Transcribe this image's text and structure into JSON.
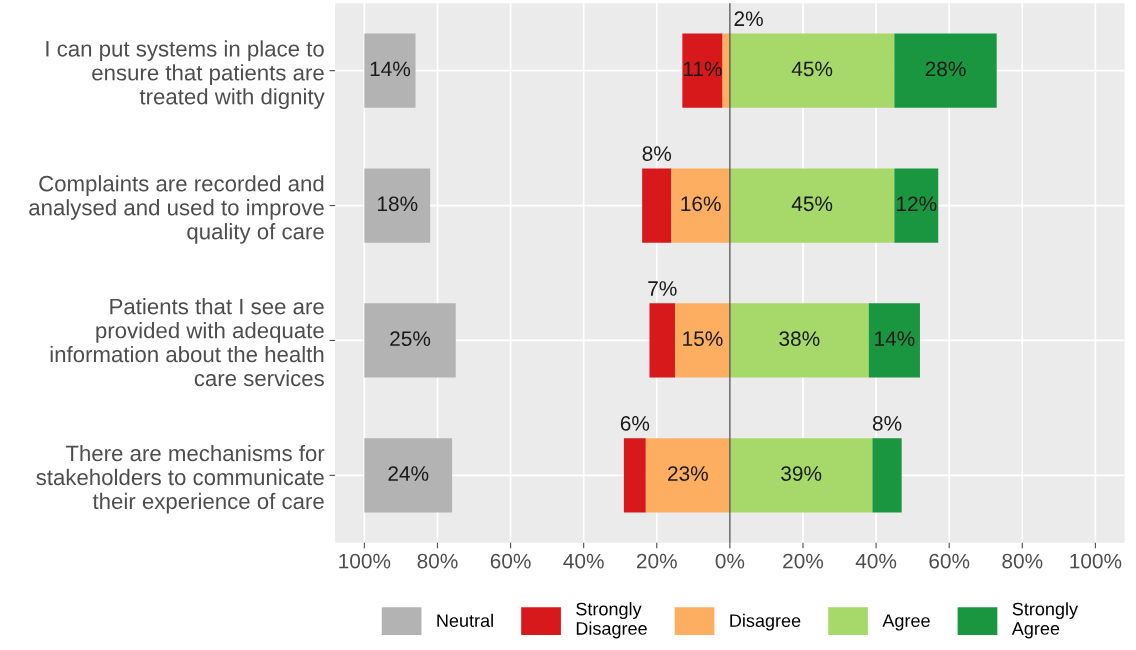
{
  "chart_data": {
    "type": "bar",
    "orientation": "horizontal",
    "categories": [
      "I can put systems in place to\nensure that patients are\ntreated with dignity",
      "Complaints are recorded and\nanalysed and used to improve\nquality of care",
      "Patients that I see are\nprovided with adequate\ninformation about the health\ncare services",
      "There are mechanisms for\nstakeholders to communicate\ntheir experience of care"
    ],
    "series": [
      {
        "name": "Neutral",
        "color": "#b3b3b3",
        "base": [
          -100,
          -100,
          -100,
          -100
        ],
        "values": [
          14,
          18,
          25,
          24
        ],
        "value_labels": [
          "14%",
          "18%",
          "25%",
          "24%"
        ]
      },
      {
        "name": "Strongly\nDisagree",
        "color": "#d7191c",
        "base": [
          -2,
          -16,
          -15,
          -23
        ],
        "values": [
          -11,
          -8,
          -7,
          -6
        ],
        "value_labels": [
          "11%",
          "8%",
          "7%",
          "6%"
        ]
      },
      {
        "name": "Disagree",
        "color": "#fdae61",
        "base": [
          0,
          0,
          0,
          0
        ],
        "values": [
          -2,
          -16,
          -15,
          -23
        ],
        "value_labels": [
          "2%",
          "16%",
          "15%",
          "23%"
        ]
      },
      {
        "name": "Agree",
        "color": "#a6d96a",
        "base": [
          0,
          0,
          0,
          0
        ],
        "values": [
          45,
          45,
          38,
          39
        ],
        "value_labels": [
          "45%",
          "45%",
          "38%",
          "39%"
        ]
      },
      {
        "name": "Strongly\nAgree",
        "color": "#1a9641",
        "base": [
          45,
          45,
          38,
          39
        ],
        "values": [
          28,
          12,
          14,
          8
        ],
        "value_labels": [
          "28%",
          "12%",
          "14%",
          "8%"
        ]
      }
    ],
    "xlim": [
      -108,
      108
    ],
    "xticks": [
      {
        "value": -100,
        "label": "100%"
      },
      {
        "value": -80,
        "label": "80%"
      },
      {
        "value": -60,
        "label": "60%"
      },
      {
        "value": -40,
        "label": "40%"
      },
      {
        "value": -20,
        "label": "20%"
      },
      {
        "value": 0,
        "label": "0%"
      },
      {
        "value": 20,
        "label": "20%"
      },
      {
        "value": 40,
        "label": "40%"
      },
      {
        "value": 60,
        "label": "60%"
      },
      {
        "value": 80,
        "label": "80%"
      },
      {
        "value": 100,
        "label": "100%"
      }
    ],
    "ref_lines": [
      {
        "axis": "x",
        "value": 0,
        "color": "#595959"
      }
    ],
    "grid": true,
    "legend": "bottom"
  }
}
